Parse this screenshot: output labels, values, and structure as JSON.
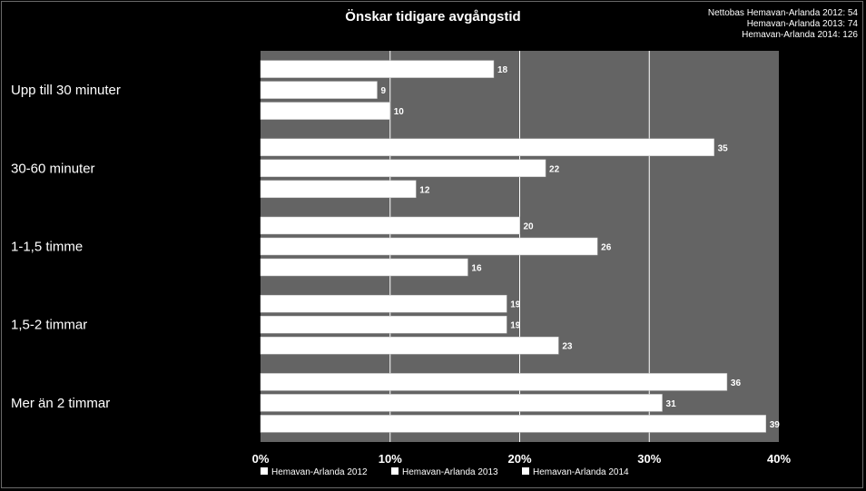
{
  "chart_data": {
    "type": "bar",
    "orientation": "horizontal",
    "title": "Önskar tidigare avgångstid",
    "note": [
      "Nettobas  Hemavan-Arlanda 2012: 54",
      "Hemavan-Arlanda 2013: 74",
      "Hemavan-Arlanda 2014: 126"
    ],
    "categories": [
      "Upp till 30 minuter",
      "30-60 minuter",
      "1-1,5 timme",
      "1,5-2 timmar",
      "Mer än 2 timmar"
    ],
    "series": [
      {
        "name": "Hemavan-Arlanda 2012",
        "values": [
          18,
          35,
          20,
          19,
          36
        ]
      },
      {
        "name": "Hemavan-Arlanda 2013",
        "values": [
          9,
          22,
          26,
          19,
          31
        ]
      },
      {
        "name": "Hemavan-Arlanda 2014",
        "values": [
          10,
          12,
          16,
          23,
          39
        ]
      }
    ],
    "xlim": [
      0,
      40
    ],
    "xticks": [
      "0%",
      "10%",
      "20%",
      "30%",
      "40%"
    ],
    "grid": true,
    "legend": "bottom",
    "colors": {
      "background": "#000000",
      "plot_area": "#646464",
      "bar": "#ffffff",
      "grid": "#ffffff",
      "text": "#ffffff"
    }
  }
}
